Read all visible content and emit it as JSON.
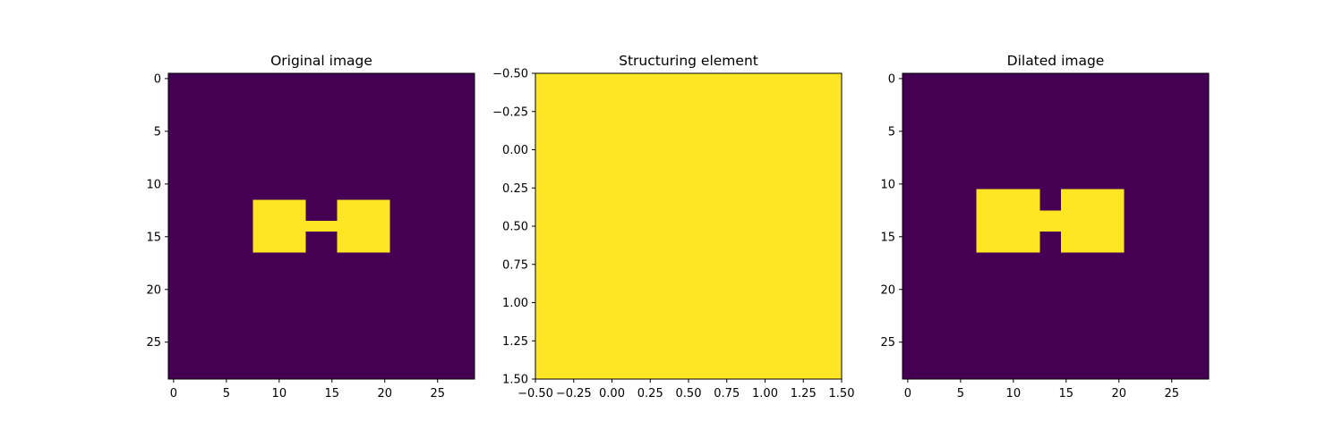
{
  "chart_data": [
    {
      "type": "heatmap",
      "title": "Original image",
      "shape": [
        29,
        29
      ],
      "xlim": [
        -0.5,
        28.5
      ],
      "ylim": [
        28.5,
        -0.5
      ],
      "xticks": [
        0,
        5,
        10,
        15,
        20,
        25
      ],
      "yticks": [
        0,
        5,
        10,
        15,
        20,
        25
      ],
      "colors": {
        "background": "#440154",
        "foreground": "#fde725"
      },
      "foreground_regions": [
        {
          "rows": [
            12,
            16
          ],
          "cols": [
            8,
            12
          ]
        },
        {
          "rows": [
            14,
            14
          ],
          "cols": [
            13,
            15
          ]
        },
        {
          "rows": [
            12,
            16
          ],
          "cols": [
            16,
            20
          ]
        }
      ]
    },
    {
      "type": "heatmap",
      "title": "Structuring element",
      "shape": [
        2,
        2
      ],
      "xlim": [
        -0.5,
        1.5
      ],
      "ylim": [
        1.5,
        -0.5
      ],
      "xticks": [
        "−0.50",
        "−0.25",
        "0.00",
        "0.25",
        "0.50",
        "0.75",
        "1.00",
        "1.25",
        "1.50"
      ],
      "yticks": [
        "−0.50",
        "−0.25",
        "0.00",
        "0.25",
        "0.50",
        "0.75",
        "1.00",
        "1.25",
        "1.50"
      ],
      "colors": {
        "background": "#440154",
        "foreground": "#fde725"
      },
      "values": [
        [
          1,
          1
        ],
        [
          1,
          1
        ]
      ]
    },
    {
      "type": "heatmap",
      "title": "Dilated image",
      "shape": [
        29,
        29
      ],
      "xlim": [
        -0.5,
        28.5
      ],
      "ylim": [
        28.5,
        -0.5
      ],
      "xticks": [
        0,
        5,
        10,
        15,
        20,
        25
      ],
      "yticks": [
        0,
        5,
        10,
        15,
        20,
        25
      ],
      "colors": {
        "background": "#440154",
        "foreground": "#fde725"
      },
      "foreground_regions": [
        {
          "rows": [
            11,
            16
          ],
          "cols": [
            7,
            12
          ]
        },
        {
          "rows": [
            13,
            14
          ],
          "cols": [
            13,
            14
          ]
        },
        {
          "rows": [
            11,
            16
          ],
          "cols": [
            15,
            20
          ]
        }
      ]
    }
  ]
}
